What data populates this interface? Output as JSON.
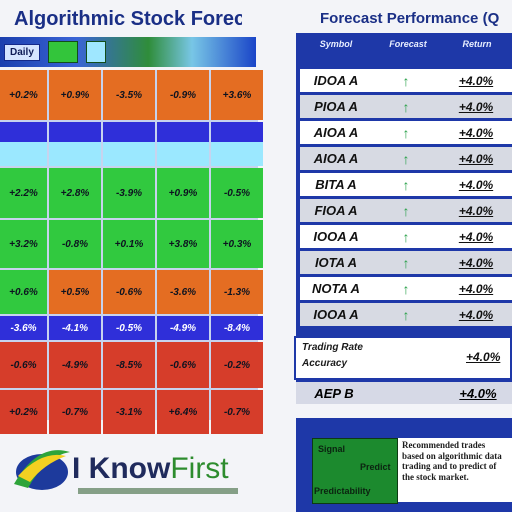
{
  "left_panel": {
    "title": "Algorithmic Stock Forecast",
    "tab_label": "Daily",
    "grid": [
      [
        "+0.2%",
        "+0.9%",
        "-3.5%",
        "-0.9%",
        "+3.6%"
      ],
      [
        "",
        "",
        "",
        "",
        ""
      ],
      [
        "+2.2%",
        "+2.8%",
        "-3.9%",
        "+0.9%",
        "-0.5%"
      ],
      [
        "+3.2%",
        "-0.8%",
        "+0.1%",
        "+3.8%",
        "+0.3%"
      ],
      [
        "+0.6%",
        "+0.5%",
        "-0.6%",
        "-3.6%",
        "-1.3%"
      ],
      [
        "-3.6%",
        "-4.1%",
        "-0.5%",
        "-4.9%",
        "-8.4%"
      ],
      [
        "-0.6%",
        "-4.9%",
        "-8.5%",
        "-0.6%",
        "-0.2%"
      ],
      [
        "+0.2%",
        "-0.7%",
        "-3.1%",
        "+6.4%",
        "-0.7%"
      ]
    ],
    "grid_colors": [
      [
        "orange",
        "orange",
        "orange",
        "orange",
        "orange"
      ],
      [
        "wave",
        "wave",
        "wave",
        "wave",
        "wave"
      ],
      [
        "green",
        "green",
        "green",
        "green",
        "green"
      ],
      [
        "green",
        "green",
        "green",
        "green",
        "green"
      ],
      [
        "green",
        "orange",
        "orange",
        "orange",
        "orange"
      ],
      [
        "blue",
        "blue",
        "blue",
        "blue",
        "blue"
      ],
      [
        "red",
        "red",
        "red",
        "red",
        "red"
      ],
      [
        "red",
        "red",
        "red",
        "red",
        "red"
      ]
    ]
  },
  "logo": {
    "brand_left": "I Know",
    "brand_right": "First"
  },
  "right_panel": {
    "title": "Forecast Performance (Q",
    "headers": [
      "Symbol",
      "Forecast",
      "Return"
    ],
    "rows": [
      {
        "symbol": "IDOA A",
        "value": "+4.0%"
      },
      {
        "symbol": "PIOA A",
        "value": "+4.0%"
      },
      {
        "symbol": "AIOA A",
        "value": "+4.0%"
      },
      {
        "symbol": "AIOA A",
        "value": "+4.0%"
      },
      {
        "symbol": "BITA A",
        "value": "+4.0%"
      },
      {
        "symbol": "FIOA A",
        "value": "+4.0%"
      },
      {
        "symbol": "IOOA A",
        "value": "+4.0%"
      },
      {
        "symbol": "IOTA A",
        "value": "+4.0%"
      },
      {
        "symbol": "NOTA A",
        "value": "+4.0%"
      },
      {
        "symbol": "IOOA A",
        "value": "+4.0%"
      }
    ],
    "arrow_symbol": "↑",
    "summary": {
      "label_1": "Trading Rate",
      "label_2": "Accuracy",
      "value": "+4.0%"
    },
    "average_row": {
      "label": "AEP B",
      "value": "+4.0%"
    },
    "info": {
      "green_1": "Signal",
      "green_2": "Predict",
      "green_3": "Predictability",
      "text": "Recommended trades based on algorithmic data trading and to predict of the stock market."
    }
  },
  "colors": {
    "orange": "#e46d22",
    "blue": "#2f2fd9",
    "green": "#31c93f",
    "red": "#d63d2a",
    "navy": "#1e38a8"
  }
}
